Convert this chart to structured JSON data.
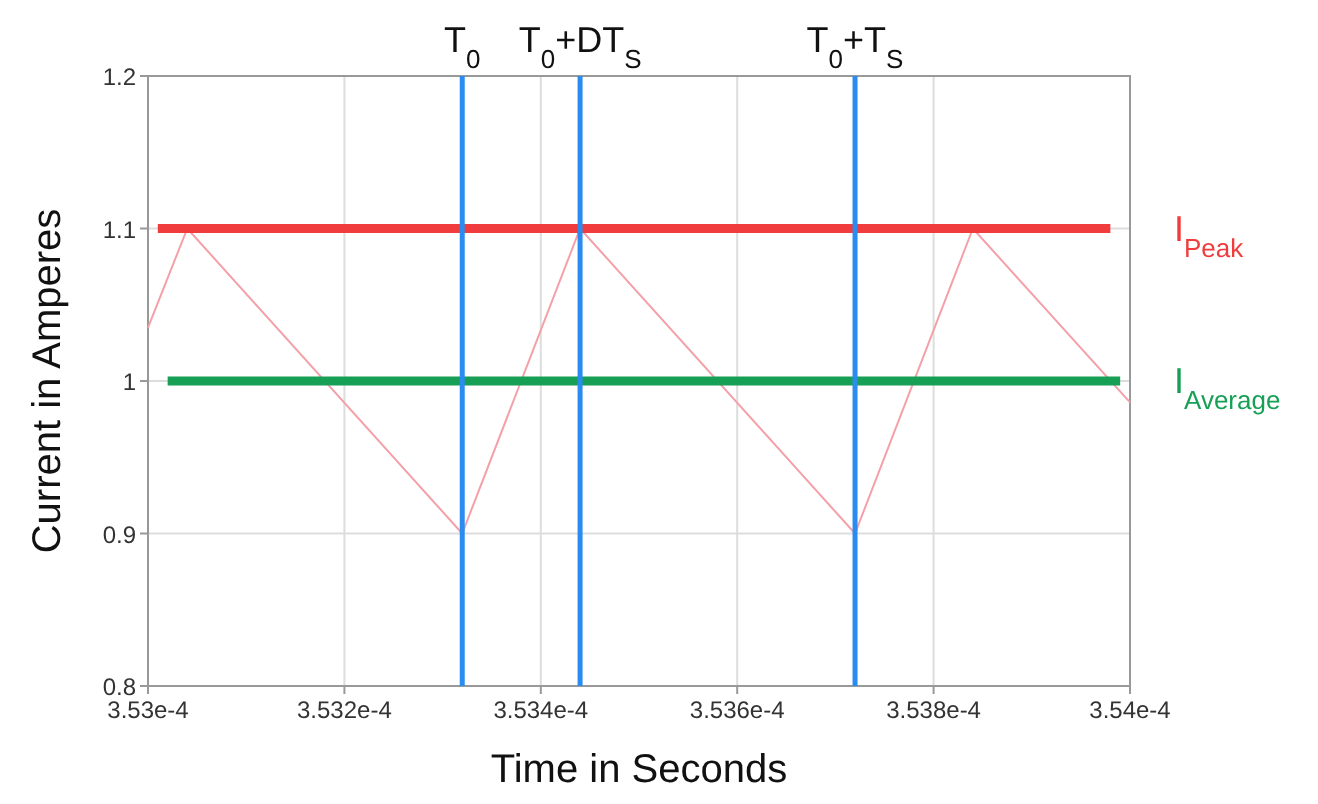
{
  "chart_data": {
    "type": "line",
    "xlabel": "Time in Seconds",
    "ylabel": "Current in Amperes",
    "xlim": [
      0.000353,
      0.000354
    ],
    "xticks": [
      {
        "value": 0.000353,
        "label": "3.53e-4"
      },
      {
        "value": 0.0003532,
        "label": "3.532e-4"
      },
      {
        "value": 0.0003534,
        "label": "3.534e-4"
      },
      {
        "value": 0.0003536,
        "label": "3.536e-4"
      },
      {
        "value": 0.0003538,
        "label": "3.538e-4"
      },
      {
        "value": 0.000354,
        "label": "3.54e-4"
      }
    ],
    "ylim": [
      0.8,
      1.2
    ],
    "yticks": [
      0.8,
      0.9,
      1,
      1.1,
      1.2
    ],
    "grid": true,
    "marker": "none",
    "line_style": "solid",
    "series": [
      {
        "color": "#f4a0a8",
        "x": [
          0.000353,
          0.00035304,
          0.00035332,
          0.00035344,
          0.00035372,
          0.00035384,
          0.000354
        ],
        "values": [
          1.035,
          1.1,
          0.9,
          1.1,
          0.9,
          1.1,
          0.986
        ]
      },
      {
        "name": "I$_{Peak}$",
        "color": "#f03c3c",
        "x": [
          0.00035301,
          0.00035398
        ],
        "values": [
          1.1,
          1.1
        ]
      },
      {
        "name": "I$_{Average}$",
        "color": "#17a055",
        "x": [
          0.00035302,
          0.00035399
        ],
        "values": [
          1,
          1
        ]
      }
    ],
    "ref_lines": [
      {
        "axis": "x",
        "value": 0.00035332,
        "label": "T$_{0}$",
        "color": "#2a8cf0"
      },
      {
        "axis": "x",
        "value": 0.00035344,
        "label": "T$_{0}$+DT$_{S}$",
        "color": "#2a8cf0"
      },
      {
        "axis": "x",
        "value": 0.00035372,
        "label": "T$_{0}$+T$_{S}$",
        "color": "#2a8cf0"
      }
    ]
  }
}
